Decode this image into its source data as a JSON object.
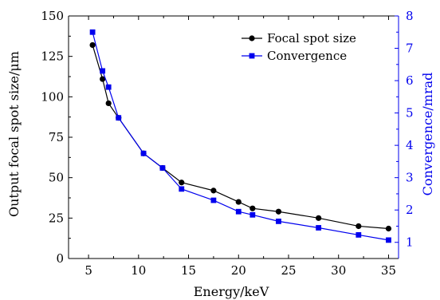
{
  "chart_data": {
    "type": "line",
    "title": "",
    "xlabel": "Energy/keV",
    "ylabel": "Output focal spot size/μm",
    "y2label": "Convergence/mrad",
    "xlim": [
      3,
      36
    ],
    "ylim": [
      0,
      150
    ],
    "y2lim": [
      0.5,
      8
    ],
    "xticks": [
      "5",
      "10",
      "15",
      "20",
      "25",
      "30",
      "35"
    ],
    "yticks": [
      "0",
      "25",
      "50",
      "75",
      "100",
      "125",
      "150"
    ],
    "y2ticks": [
      "1",
      "2",
      "3",
      "4",
      "5",
      "6",
      "7",
      "8"
    ],
    "grid": false,
    "legend_position": "top-right",
    "series": [
      {
        "name": "Focal spot size",
        "axis": "left",
        "color": "#000000",
        "marker": "circle",
        "x": [
          5.4,
          6.4,
          7.0,
          8.0,
          10.5,
          12.4,
          14.3,
          17.5,
          20.0,
          21.4,
          24.0,
          28.0,
          32.0,
          35.0
        ],
        "y": [
          132,
          111,
          96,
          87,
          65,
          56,
          47,
          42,
          35,
          31,
          29,
          25,
          20,
          18.5
        ]
      },
      {
        "name": "Convergence",
        "axis": "right",
        "color": "#0000ee",
        "marker": "square",
        "x": [
          5.4,
          6.4,
          7.0,
          8.0,
          10.5,
          12.4,
          14.3,
          17.5,
          20.0,
          21.4,
          24.0,
          28.0,
          32.0,
          35.0
        ],
        "y": [
          7.5,
          6.3,
          5.8,
          4.85,
          3.75,
          3.3,
          2.65,
          2.3,
          1.95,
          1.85,
          1.65,
          1.45,
          1.23,
          1.07
        ]
      }
    ]
  }
}
